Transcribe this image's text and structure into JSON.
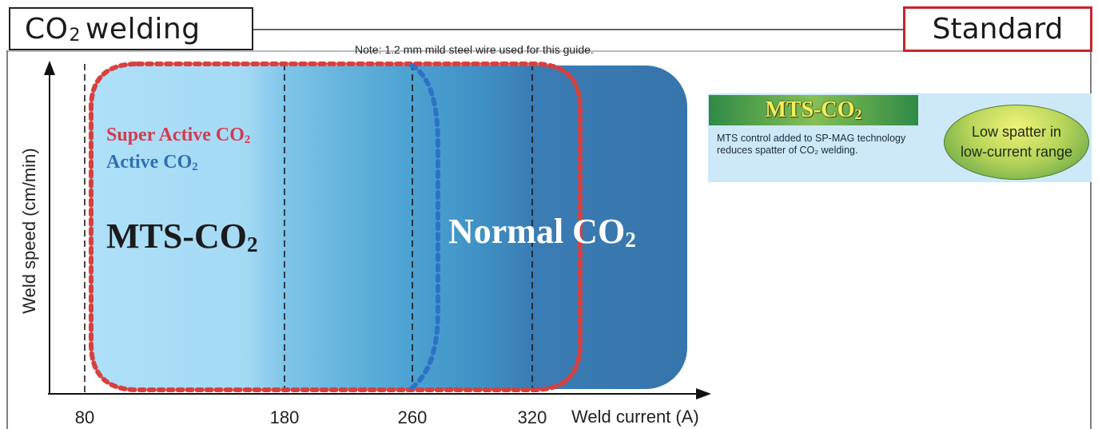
{
  "header": {
    "title_prefix": "CO",
    "title_subscript": "2",
    "title_suffix": "welding",
    "standard_label": "Standard",
    "note": "Note: 1.2 mm mild steel wire used for this guide."
  },
  "chart_data": {
    "type": "region-diagram",
    "xlabel": "Weld current (A)",
    "ylabel": "Weld speed (cm/min)",
    "x_ticks": [
      "80",
      "180",
      "260",
      "320"
    ],
    "dashed_lines_at": [
      80,
      180,
      260,
      320
    ],
    "regions": [
      {
        "name": "MTS-CO2",
        "text": "MTS-CO",
        "sub": "2",
        "x_range": [
          80,
          180
        ]
      },
      {
        "name": "Normal CO2",
        "text": "Normal CO",
        "sub": "2",
        "x_range": [
          180,
          400
        ]
      }
    ],
    "outlines": [
      {
        "label_text": "Super Active CO",
        "label_sub": "2",
        "color": "#d43a4e",
        "style": "dotted",
        "x_end": 360
      },
      {
        "label_text": "Active CO",
        "label_sub": "2",
        "color": "#2e6fb5",
        "style": "dotted",
        "x_end": 265
      }
    ],
    "colors": {
      "light_region": "#a8dbf6",
      "mid_region": "#58a9d6",
      "dark_region": "#3a78b0",
      "super_active": "#d43a4e",
      "active": "#2e6fb5"
    }
  },
  "legend": {
    "title_text": "MTS-CO",
    "title_sub": "2",
    "description": "MTS control added to SP-MAG technology reduces spatter of CO₂ welding.",
    "oval_line1": "Low spatter in",
    "oval_line2": "low-current range"
  }
}
